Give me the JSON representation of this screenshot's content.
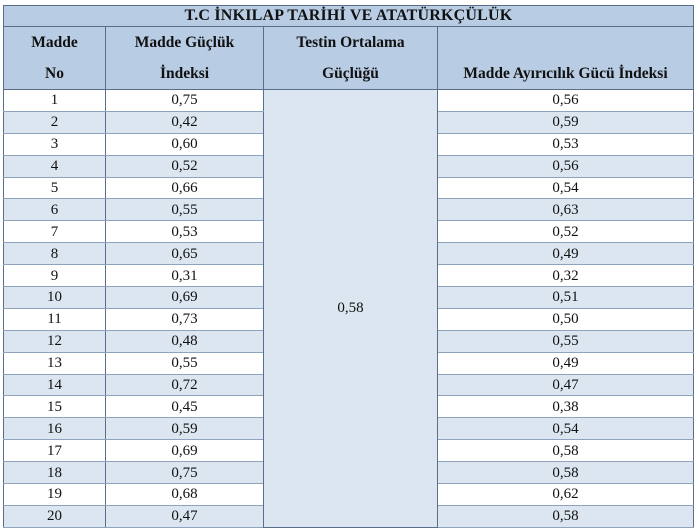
{
  "title": "T.C İNKILAP TARİHİ VE ATATÜRKÇÜLÜK",
  "headers": {
    "madde_no": [
      "Madde",
      "No"
    ],
    "guclik": [
      "Madde Güçlük",
      "İndeksi"
    ],
    "ortalama": [
      "Testin Ortalama",
      "Güçlüğü"
    ],
    "ayiricilik": "Madde Ayırıcılık Gücü İndeksi"
  },
  "test_average_difficulty": "0,58",
  "rows": [
    {
      "no": "1",
      "difficulty": "0,75",
      "discrimination": "0,56"
    },
    {
      "no": "2",
      "difficulty": "0,42",
      "discrimination": "0,59"
    },
    {
      "no": "3",
      "difficulty": "0,60",
      "discrimination": "0,53"
    },
    {
      "no": "4",
      "difficulty": "0,52",
      "discrimination": "0,56"
    },
    {
      "no": "5",
      "difficulty": "0,66",
      "discrimination": "0,54"
    },
    {
      "no": "6",
      "difficulty": "0,55",
      "discrimination": "0,63"
    },
    {
      "no": "7",
      "difficulty": "0,53",
      "discrimination": "0,52"
    },
    {
      "no": "8",
      "difficulty": "0,65",
      "discrimination": "0,49"
    },
    {
      "no": "9",
      "difficulty": "0,31",
      "discrimination": "0,32"
    },
    {
      "no": "10",
      "difficulty": "0,69",
      "discrimination": "0,51"
    },
    {
      "no": "11",
      "difficulty": "0,73",
      "discrimination": "0,50"
    },
    {
      "no": "12",
      "difficulty": "0,48",
      "discrimination": "0,55"
    },
    {
      "no": "13",
      "difficulty": "0,55",
      "discrimination": "0,49"
    },
    {
      "no": "14",
      "difficulty": "0,72",
      "discrimination": "0,47"
    },
    {
      "no": "15",
      "difficulty": "0,45",
      "discrimination": "0,38"
    },
    {
      "no": "16",
      "difficulty": "0,59",
      "discrimination": "0,54"
    },
    {
      "no": "17",
      "difficulty": "0,69",
      "discrimination": "0,58"
    },
    {
      "no": "18",
      "difficulty": "0,75",
      "discrimination": "0,58"
    },
    {
      "no": "19",
      "difficulty": "0,68",
      "discrimination": "0,62"
    },
    {
      "no": "20",
      "difficulty": "0,47",
      "discrimination": "0,58"
    }
  ],
  "colors": {
    "header_bg": "#b8cce4",
    "stripe_bg": "#dce6f1",
    "border": "#5a6e8c"
  }
}
